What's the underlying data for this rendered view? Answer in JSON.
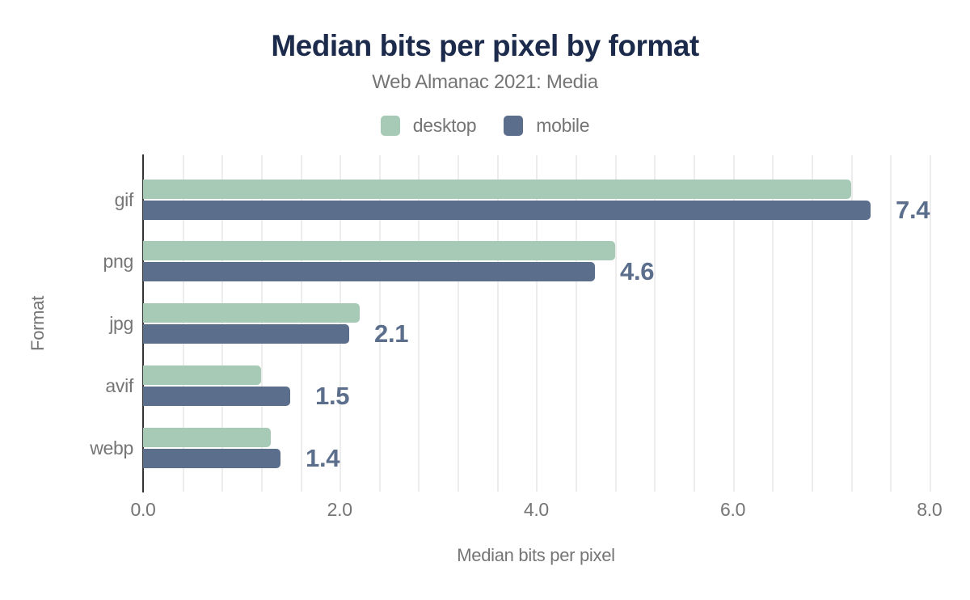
{
  "chart_data": {
    "type": "bar",
    "orientation": "horizontal",
    "title": "Median bits per pixel by format",
    "subtitle": "Web Almanac 2021: Media",
    "xlabel": "Median bits per pixel",
    "ylabel": "Format",
    "categories": [
      "gif",
      "png",
      "jpg",
      "avif",
      "webp"
    ],
    "series": [
      {
        "name": "desktop",
        "color": "#a6cab5",
        "values": [
          7.2,
          4.8,
          2.2,
          1.2,
          1.3
        ]
      },
      {
        "name": "mobile",
        "color": "#5b6e8c",
        "values": [
          7.4,
          4.6,
          2.1,
          1.5,
          1.4
        ]
      }
    ],
    "bar_labels": {
      "labeled_series": "mobile",
      "values": [
        "7.4",
        "4.6",
        "2.1",
        "1.5",
        "1.4"
      ]
    },
    "x_ticks": [
      {
        "value": 0,
        "label": "0.0"
      },
      {
        "value": 2,
        "label": "2.0"
      },
      {
        "value": 4,
        "label": "4.0"
      },
      {
        "value": 6,
        "label": "6.0"
      },
      {
        "value": 8,
        "label": "8.0"
      }
    ],
    "xlim": [
      0,
      8
    ],
    "grid": {
      "minor_step": 0.4,
      "color": "#ededed",
      "visible": true
    },
    "legend_position": "top"
  },
  "colors": {
    "background": "#ffffff",
    "title_text": "#1c2b4c",
    "muted_text": "#757575",
    "axis_line": "#333333",
    "value_label_text": "#5b6e8c"
  }
}
